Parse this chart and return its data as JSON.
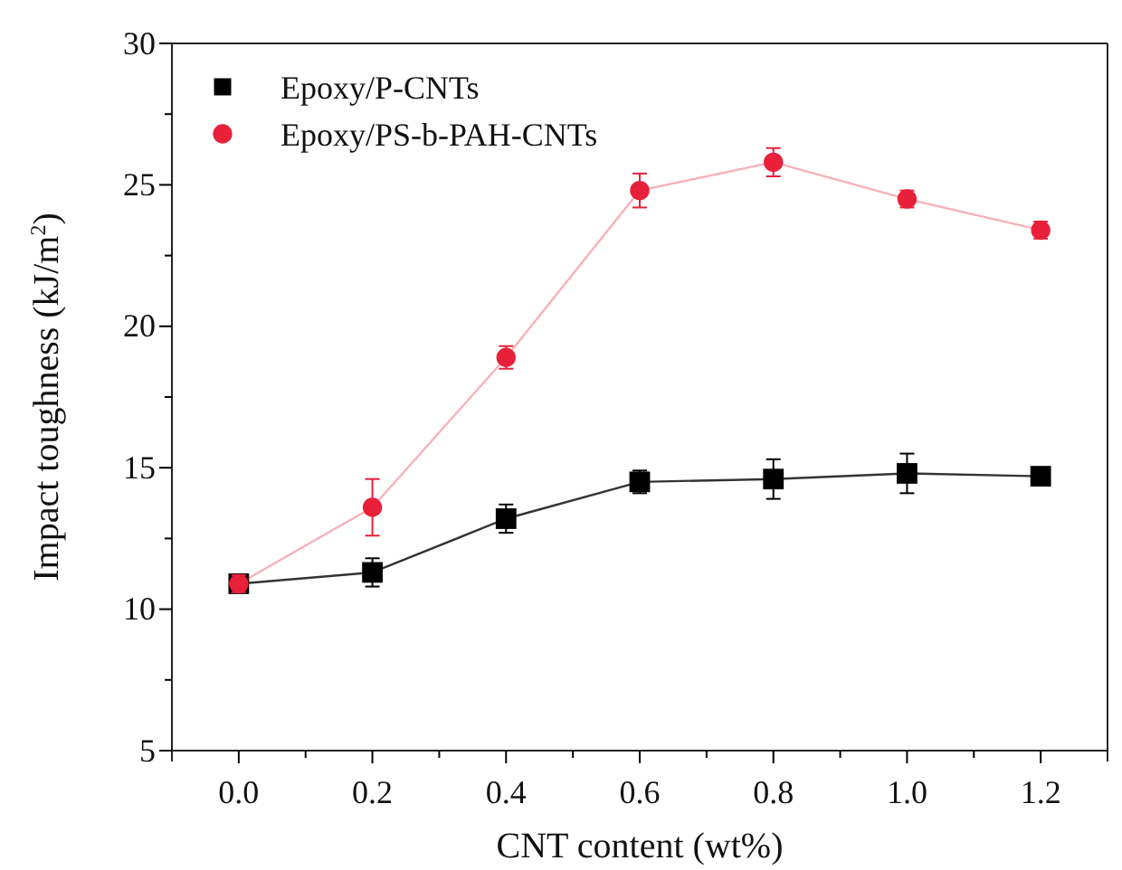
{
  "chart_data": {
    "type": "line",
    "xlabel": "CNT content (wt%)",
    "ylabel": "Impact toughness (kJ/m$^{2}$)",
    "x": [
      0.0,
      0.2,
      0.4,
      0.6,
      0.8,
      1.0,
      1.2
    ],
    "series": [
      {
        "name": "Epoxy/P-CNTs",
        "color": "#000000",
        "marker": "square",
        "values": [
          10.9,
          11.3,
          13.2,
          14.5,
          14.6,
          14.8,
          14.7
        ],
        "errors": [
          null,
          0.5,
          0.5,
          0.4,
          0.7,
          0.7,
          0.3
        ]
      },
      {
        "name": "Epoxy/PS-b-PAH-CNTs",
        "color": "#e8203a",
        "marker": "circle",
        "values": [
          10.9,
          13.6,
          18.9,
          24.8,
          25.8,
          24.5,
          23.4
        ],
        "errors": [
          0.3,
          1.0,
          0.4,
          0.6,
          0.5,
          0.3,
          0.3
        ]
      }
    ],
    "xlim": [
      -0.1,
      1.3
    ],
    "ylim": [
      5,
      30
    ],
    "xticks": [
      {
        "value": 0.0,
        "label": "0.0"
      },
      {
        "value": 0.1,
        "label": null
      },
      {
        "value": 0.2,
        "label": "0.2"
      },
      {
        "value": 0.3,
        "label": null
      },
      {
        "value": 0.4,
        "label": "0.4"
      },
      {
        "value": 0.5,
        "label": null
      },
      {
        "value": 0.6,
        "label": "0.6"
      },
      {
        "value": 0.7,
        "label": null
      },
      {
        "value": 0.8,
        "label": "0.8"
      },
      {
        "value": 0.9,
        "label": null
      },
      {
        "value": 1.0,
        "label": "1.0"
      },
      {
        "value": 1.1,
        "label": null
      },
      {
        "value": 1.2,
        "label": "1.2"
      }
    ],
    "yticks": [
      5,
      {
        "value": 7.5,
        "label": null
      },
      10,
      {
        "value": 12.5,
        "label": null
      },
      15,
      {
        "value": 17.5,
        "label": null
      },
      20,
      {
        "value": 22.5,
        "label": null
      },
      25,
      {
        "value": 27.5,
        "label": null
      },
      30
    ],
    "grid": false,
    "legend": "top left",
    "line_style": "solid"
  }
}
